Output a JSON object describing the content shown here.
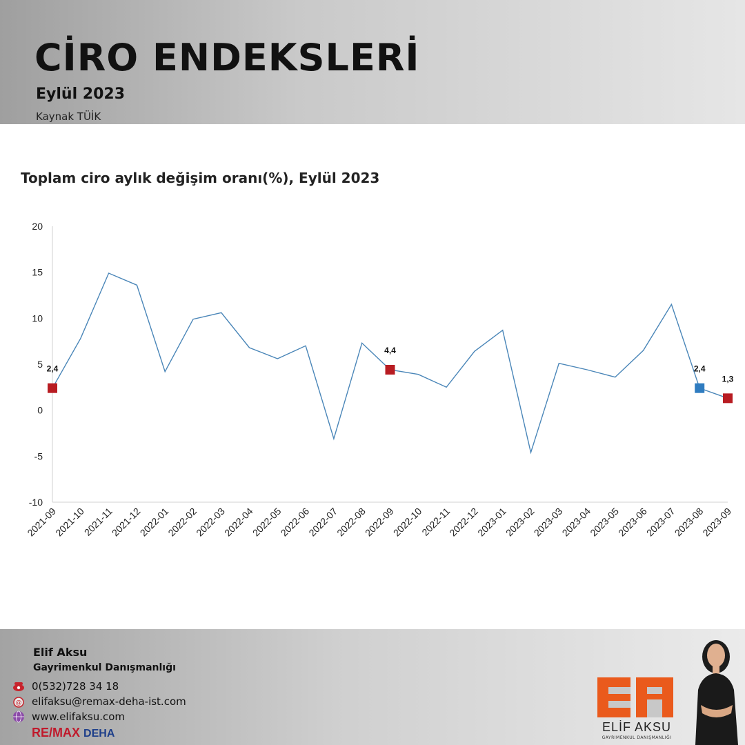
{
  "header": {
    "title": "CİRO ENDEKSLERİ",
    "subtitle": "Eylül 2023",
    "source": "Kaynak TÜİK"
  },
  "chart_data": {
    "type": "line",
    "title": "Toplam ciro aylık değişim oranı(%), Eylül 2023",
    "xlabel": "",
    "ylabel": "",
    "ylim": [
      -10,
      20
    ],
    "yticks": [
      20,
      15,
      10,
      5,
      0,
      -5,
      -10
    ],
    "grid": false,
    "categories": [
      "2021-09",
      "2021-10",
      "2021-11",
      "2021-12",
      "2022-01",
      "2022-02",
      "2022-03",
      "2022-04",
      "2022-05",
      "2022-06",
      "2022-07",
      "2022-08",
      "2022-09",
      "2022-10",
      "2022-11",
      "2022-12",
      "2023-01",
      "2023-02",
      "2023-03",
      "2023-04",
      "2023-05",
      "2023-06",
      "2023-07",
      "2023-08",
      "2023-09"
    ],
    "series": [
      {
        "values": [
          2.4,
          7.8,
          14.9,
          13.6,
          4.2,
          9.9,
          10.6,
          6.8,
          5.6,
          7.0,
          -3.1,
          7.3,
          4.4,
          3.9,
          2.5,
          6.4,
          8.7,
          -4.6,
          5.1,
          4.4,
          3.6,
          6.5,
          11.5,
          2.4,
          1.3
        ],
        "color": "#4a86b8"
      }
    ],
    "markers": [
      {
        "index": 0,
        "label": "2,4",
        "color": "#b81c22"
      },
      {
        "index": 12,
        "label": "4,4",
        "color": "#b81c22"
      },
      {
        "index": 23,
        "label": "2,4",
        "color": "#2f7cc0"
      },
      {
        "index": 24,
        "label": "1,3",
        "color": "#b81c22"
      }
    ]
  },
  "footer": {
    "name": "Elif Aksu",
    "role": "Gayrimenkul Danışmanlığı",
    "phone": "0(532)728 34 18",
    "email": "elifaksu@remax-deha-ist.com",
    "website": "www.elifaksu.com",
    "brand_remax": "RE/MAX",
    "brand_deha": "DEHA",
    "logo_text": "ELİF AKSU",
    "logo_subtext": "GAYRIMENKUL DANIŞMANLIĞI",
    "icons": [
      "phone-icon",
      "email-icon",
      "globe-icon"
    ]
  }
}
